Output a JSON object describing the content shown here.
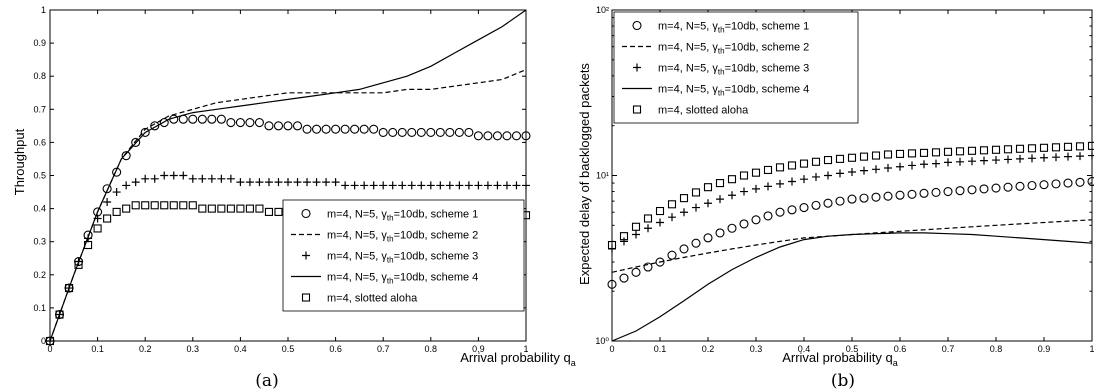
{
  "chart_data": [
    {
      "type": "scatter",
      "caption": "(a)",
      "xlabel": "Arrival probability q",
      "xlabel_sub": "a",
      "ylabel": "Throughput",
      "xlim": [
        0,
        1
      ],
      "ylim": [
        0,
        1
      ],
      "yscale": "linear",
      "xticks": [
        "0",
        "0.1",
        "0.2",
        "0.3",
        "0.4",
        "0.5",
        "0.6",
        "0.7",
        "0.8",
        "0.9",
        "1"
      ],
      "yticks": [
        "0",
        "0.1",
        "0.2",
        "0.3",
        "0.4",
        "0.5",
        "0.6",
        "0.7",
        "0.8",
        "0.9",
        "1"
      ],
      "grid": false,
      "legend_position": "bottom-right",
      "series": [
        {
          "name": "m=4, N=5, γth=10db, scheme 1",
          "label_pre": "m=4, N=5, γ",
          "label_sub": "th",
          "label_post": "=10db, scheme 1",
          "marker": "circle",
          "x": [
            0,
            0.02,
            0.04,
            0.06,
            0.08,
            0.1,
            0.12,
            0.14,
            0.16,
            0.18,
            0.2,
            0.22,
            0.24,
            0.26,
            0.28,
            0.3,
            0.32,
            0.34,
            0.36,
            0.38,
            0.4,
            0.42,
            0.44,
            0.46,
            0.48,
            0.5,
            0.52,
            0.54,
            0.56,
            0.58,
            0.6,
            0.62,
            0.64,
            0.66,
            0.68,
            0.7,
            0.72,
            0.74,
            0.76,
            0.78,
            0.8,
            0.82,
            0.84,
            0.86,
            0.88,
            0.9,
            0.92,
            0.94,
            0.96,
            0.98,
            1
          ],
          "y": [
            0,
            0.08,
            0.16,
            0.24,
            0.32,
            0.39,
            0.46,
            0.51,
            0.56,
            0.6,
            0.63,
            0.65,
            0.66,
            0.67,
            0.67,
            0.67,
            0.67,
            0.67,
            0.67,
            0.66,
            0.66,
            0.66,
            0.66,
            0.65,
            0.65,
            0.65,
            0.65,
            0.64,
            0.64,
            0.64,
            0.64,
            0.64,
            0.64,
            0.64,
            0.64,
            0.63,
            0.63,
            0.63,
            0.63,
            0.63,
            0.63,
            0.63,
            0.63,
            0.63,
            0.63,
            0.62,
            0.62,
            0.62,
            0.62,
            0.62,
            0.62
          ]
        },
        {
          "name": "m=4, N=5, γth=10db, scheme 2",
          "label_pre": "m=4, N=5, γ",
          "label_sub": "th",
          "label_post": "=10db, scheme 2",
          "marker": "dashed",
          "x": [
            0,
            0.05,
            0.1,
            0.15,
            0.2,
            0.25,
            0.3,
            0.35,
            0.4,
            0.45,
            0.5,
            0.55,
            0.6,
            0.65,
            0.7,
            0.75,
            0.8,
            0.85,
            0.9,
            0.95,
            1
          ],
          "y": [
            0,
            0.2,
            0.39,
            0.55,
            0.64,
            0.68,
            0.7,
            0.72,
            0.73,
            0.74,
            0.75,
            0.75,
            0.75,
            0.75,
            0.75,
            0.76,
            0.76,
            0.77,
            0.78,
            0.79,
            0.82
          ]
        },
        {
          "name": "m=4, N=5, γth=10db, scheme 3",
          "label_pre": "m=4, N=5, γ",
          "label_sub": "th",
          "label_post": "=10db, scheme 3",
          "marker": "plus",
          "x": [
            0,
            0.02,
            0.04,
            0.06,
            0.08,
            0.1,
            0.12,
            0.14,
            0.16,
            0.18,
            0.2,
            0.22,
            0.24,
            0.26,
            0.28,
            0.3,
            0.32,
            0.34,
            0.36,
            0.38,
            0.4,
            0.42,
            0.44,
            0.46,
            0.48,
            0.5,
            0.52,
            0.54,
            0.56,
            0.58,
            0.6,
            0.62,
            0.64,
            0.66,
            0.68,
            0.7,
            0.72,
            0.74,
            0.76,
            0.78,
            0.8,
            0.82,
            0.84,
            0.86,
            0.88,
            0.9,
            0.92,
            0.94,
            0.96,
            0.98,
            1
          ],
          "y": [
            0,
            0.08,
            0.16,
            0.24,
            0.31,
            0.37,
            0.42,
            0.45,
            0.47,
            0.48,
            0.49,
            0.49,
            0.5,
            0.5,
            0.5,
            0.49,
            0.49,
            0.49,
            0.49,
            0.49,
            0.48,
            0.48,
            0.48,
            0.48,
            0.48,
            0.48,
            0.48,
            0.48,
            0.48,
            0.48,
            0.48,
            0.47,
            0.47,
            0.47,
            0.47,
            0.47,
            0.47,
            0.47,
            0.47,
            0.47,
            0.47,
            0.47,
            0.47,
            0.47,
            0.47,
            0.47,
            0.47,
            0.47,
            0.47,
            0.47,
            0.47
          ]
        },
        {
          "name": "m=4, N=5, γth=10db, scheme 4",
          "label_pre": "m=4, N=5, γ",
          "label_sub": "th",
          "label_post": "=10db, scheme 4",
          "marker": "solid",
          "x": [
            0,
            0.05,
            0.1,
            0.15,
            0.2,
            0.25,
            0.3,
            0.35,
            0.4,
            0.45,
            0.5,
            0.55,
            0.6,
            0.65,
            0.7,
            0.75,
            0.8,
            0.85,
            0.9,
            0.95,
            1
          ],
          "y": [
            0,
            0.2,
            0.39,
            0.55,
            0.63,
            0.67,
            0.69,
            0.7,
            0.71,
            0.72,
            0.73,
            0.74,
            0.75,
            0.76,
            0.78,
            0.8,
            0.83,
            0.87,
            0.91,
            0.95,
            1
          ]
        },
        {
          "name": "m=4, slotted aloha",
          "label_pre": "m=4, slotted aloha",
          "label_sub": "",
          "label_post": "",
          "marker": "square",
          "x": [
            0,
            0.02,
            0.04,
            0.06,
            0.08,
            0.1,
            0.12,
            0.14,
            0.16,
            0.18,
            0.2,
            0.22,
            0.24,
            0.26,
            0.28,
            0.3,
            0.32,
            0.34,
            0.36,
            0.38,
            0.4,
            0.42,
            0.44,
            0.46,
            0.48,
            0.5,
            0.52,
            0.54,
            0.56,
            0.58,
            0.6,
            0.62,
            0.64,
            0.66,
            0.68,
            0.7,
            0.72,
            0.74,
            0.76,
            0.78,
            0.8,
            0.82,
            0.84,
            0.86,
            0.88,
            0.9,
            0.92,
            0.94,
            0.96,
            0.98,
            1
          ],
          "y": [
            0,
            0.08,
            0.16,
            0.23,
            0.29,
            0.34,
            0.37,
            0.39,
            0.4,
            0.41,
            0.41,
            0.41,
            0.41,
            0.41,
            0.41,
            0.41,
            0.4,
            0.4,
            0.4,
            0.4,
            0.4,
            0.4,
            0.4,
            0.39,
            0.39,
            0.39,
            0.39,
            0.39,
            0.39,
            0.39,
            0.39,
            0.39,
            0.39,
            0.39,
            0.39,
            0.39,
            0.39,
            0.39,
            0.39,
            0.39,
            0.39,
            0.39,
            0.38,
            0.38,
            0.38,
            0.38,
            0.38,
            0.38,
            0.38,
            0.38,
            0.38
          ]
        }
      ]
    },
    {
      "type": "scatter",
      "caption": "(b)",
      "xlabel": "Arrival probability q",
      "xlabel_sub": "a",
      "ylabel": "Expected delay of backlogged packets",
      "xlim": [
        0,
        1
      ],
      "ylim": [
        1,
        100
      ],
      "yscale": "log",
      "xticks": [
        "0",
        "0.1",
        "0.2",
        "0.3",
        "0.4",
        "0.5",
        "0.6",
        "0.7",
        "0.8",
        "0.9",
        "1"
      ],
      "yticks": [
        "10⁰",
        "10¹",
        "10²"
      ],
      "grid": false,
      "legend_position": "top-left",
      "series": [
        {
          "name": "m=4, N=5, γth=10db, scheme 1",
          "label_pre": "m=4, N=5, γ",
          "label_sub": "th",
          "label_post": "=10db, scheme 1",
          "marker": "circle",
          "x": [
            0,
            0.025,
            0.05,
            0.075,
            0.1,
            0.125,
            0.15,
            0.175,
            0.2,
            0.225,
            0.25,
            0.275,
            0.3,
            0.325,
            0.35,
            0.375,
            0.4,
            0.425,
            0.45,
            0.475,
            0.5,
            0.525,
            0.55,
            0.575,
            0.6,
            0.625,
            0.65,
            0.675,
            0.7,
            0.725,
            0.75,
            0.775,
            0.8,
            0.825,
            0.85,
            0.875,
            0.9,
            0.925,
            0.95,
            0.975,
            1
          ],
          "y": [
            2.2,
            2.4,
            2.6,
            2.8,
            3.0,
            3.3,
            3.6,
            3.9,
            4.2,
            4.5,
            4.8,
            5.1,
            5.4,
            5.7,
            6.0,
            6.2,
            6.4,
            6.6,
            6.8,
            7.0,
            7.2,
            7.3,
            7.4,
            7.5,
            7.6,
            7.7,
            7.8,
            7.9,
            8.0,
            8.1,
            8.2,
            8.3,
            8.4,
            8.5,
            8.6,
            8.7,
            8.8,
            8.9,
            9.0,
            9.1,
            9.2
          ]
        },
        {
          "name": "m=4, N=5, γth=10db, scheme 2",
          "label_pre": "m=4, N=5, γ",
          "label_sub": "th",
          "label_post": "=10db, scheme 2",
          "marker": "dashed",
          "x": [
            0,
            0.05,
            0.1,
            0.15,
            0.2,
            0.25,
            0.3,
            0.35,
            0.4,
            0.45,
            0.5,
            0.55,
            0.6,
            0.65,
            0.7,
            0.75,
            0.8,
            0.85,
            0.9,
            0.95,
            1
          ],
          "y": [
            2.6,
            2.8,
            3.0,
            3.2,
            3.4,
            3.6,
            3.8,
            4.0,
            4.2,
            4.3,
            4.4,
            4.5,
            4.6,
            4.7,
            4.8,
            4.9,
            5.0,
            5.1,
            5.2,
            5.3,
            5.4
          ]
        },
        {
          "name": "m=4, N=5, γth=10db, scheme 3",
          "label_pre": "m=4, N=5, γ",
          "label_sub": "th",
          "label_post": "=10db, scheme 3",
          "marker": "plus",
          "x": [
            0,
            0.025,
            0.05,
            0.075,
            0.1,
            0.125,
            0.15,
            0.175,
            0.2,
            0.225,
            0.25,
            0.275,
            0.3,
            0.325,
            0.35,
            0.375,
            0.4,
            0.425,
            0.45,
            0.475,
            0.5,
            0.525,
            0.55,
            0.575,
            0.6,
            0.625,
            0.65,
            0.675,
            0.7,
            0.725,
            0.75,
            0.775,
            0.8,
            0.825,
            0.85,
            0.875,
            0.9,
            0.925,
            0.95,
            0.975,
            1
          ],
          "y": [
            3.6,
            4.0,
            4.4,
            4.8,
            5.2,
            5.6,
            6.0,
            6.4,
            6.8,
            7.2,
            7.6,
            8.0,
            8.3,
            8.6,
            8.9,
            9.2,
            9.5,
            9.8,
            10.0,
            10.3,
            10.5,
            10.7,
            10.9,
            11.1,
            11.3,
            11.5,
            11.7,
            11.8,
            12.0,
            12.1,
            12.2,
            12.3,
            12.4,
            12.5,
            12.6,
            12.7,
            12.8,
            12.9,
            13.0,
            13.1,
            13.2
          ]
        },
        {
          "name": "m=4, N=5, γth=10db, scheme 4",
          "label_pre": "m=4, N=5, γ",
          "label_sub": "th",
          "label_post": "=10db, scheme 4",
          "marker": "solid",
          "x": [
            0,
            0.05,
            0.1,
            0.15,
            0.2,
            0.25,
            0.3,
            0.35,
            0.4,
            0.45,
            0.5,
            0.55,
            0.6,
            0.65,
            0.7,
            0.75,
            0.8,
            0.85,
            0.9,
            0.95,
            1
          ],
          "y": [
            1.0,
            1.15,
            1.4,
            1.75,
            2.2,
            2.7,
            3.2,
            3.7,
            4.1,
            4.3,
            4.4,
            4.45,
            4.5,
            4.5,
            4.45,
            4.4,
            4.3,
            4.2,
            4.1,
            4.0,
            3.9
          ]
        },
        {
          "name": "m=4, slotted aloha",
          "label_pre": "m=4, slotted aloha",
          "label_sub": "",
          "label_post": "",
          "marker": "square",
          "x": [
            0,
            0.025,
            0.05,
            0.075,
            0.1,
            0.125,
            0.15,
            0.175,
            0.2,
            0.225,
            0.25,
            0.275,
            0.3,
            0.325,
            0.35,
            0.375,
            0.4,
            0.425,
            0.45,
            0.475,
            0.5,
            0.525,
            0.55,
            0.575,
            0.6,
            0.625,
            0.65,
            0.675,
            0.7,
            0.725,
            0.75,
            0.775,
            0.8,
            0.825,
            0.85,
            0.875,
            0.9,
            0.925,
            0.95,
            0.975,
            1
          ],
          "y": [
            3.8,
            4.3,
            4.9,
            5.5,
            6.1,
            6.7,
            7.3,
            7.9,
            8.5,
            9.0,
            9.5,
            10.0,
            10.4,
            10.8,
            11.2,
            11.5,
            11.8,
            12.1,
            12.4,
            12.6,
            12.8,
            13.0,
            13.2,
            13.4,
            13.5,
            13.6,
            13.7,
            13.8,
            13.9,
            14.0,
            14.1,
            14.2,
            14.3,
            14.4,
            14.5,
            14.6,
            14.7,
            14.8,
            14.9,
            15.0,
            15.1
          ]
        }
      ]
    }
  ]
}
